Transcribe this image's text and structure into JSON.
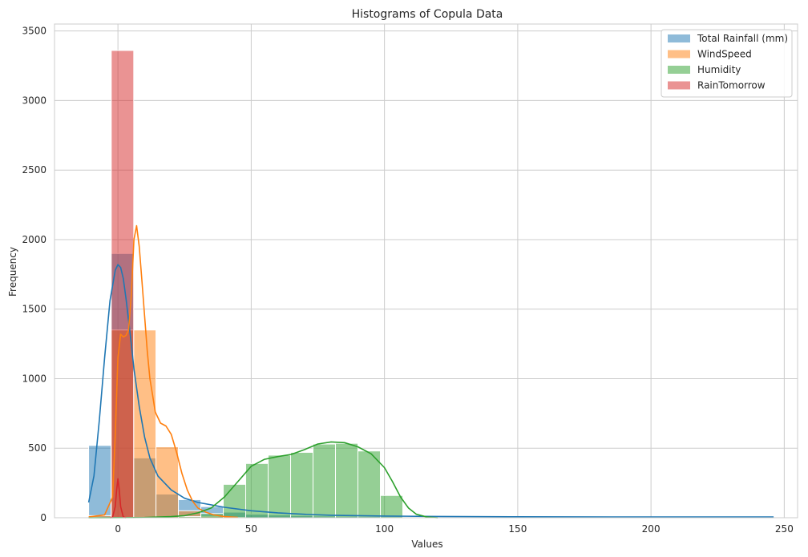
{
  "chart_data": {
    "type": "histogram",
    "title": "Histograms of Copula Data",
    "xlabel": "Values",
    "ylabel": "Frequency",
    "xlim": [
      -23.8,
      255
    ],
    "ylim": [
      0,
      3550
    ],
    "xticks": [
      0,
      50,
      100,
      150,
      200,
      250
    ],
    "yticks": [
      0,
      500,
      1000,
      1500,
      2000,
      2500,
      3000,
      3500
    ],
    "grid": true,
    "legend_position": "top-right",
    "bin_width": 8.42,
    "series": [
      {
        "name": "Total Rainfall (mm)",
        "color": "#1f77b4",
        "bin_start": -11.0,
        "counts": [
          520,
          1900,
          430,
          170,
          130,
          80,
          40,
          25,
          20,
          15,
          12,
          10,
          8,
          7,
          6,
          5,
          5,
          4,
          4,
          3,
          3,
          3,
          3,
          2,
          2,
          2,
          2,
          2,
          2,
          2
        ],
        "kde_x": [
          -11,
          -9,
          -7,
          -5,
          -3,
          -1,
          0,
          1,
          2,
          3,
          4,
          5,
          6,
          8,
          10,
          12,
          15,
          20,
          25,
          30,
          40,
          50,
          60,
          70,
          80,
          100,
          120,
          150,
          200,
          246
        ],
        "kde_y": [
          110,
          300,
          700,
          1150,
          1560,
          1780,
          1820,
          1800,
          1720,
          1580,
          1420,
          1250,
          1070,
          800,
          580,
          430,
          300,
          200,
          140,
          110,
          75,
          50,
          35,
          25,
          18,
          12,
          9,
          7,
          5,
          5
        ]
      },
      {
        "name": "WindSpeed",
        "color": "#ff7f0e",
        "bin_start": -11.0,
        "counts": [
          15,
          1350,
          1350,
          510,
          50,
          10,
          3
        ],
        "kde_x": [
          -11,
          -5,
          -2,
          -1,
          0,
          1,
          2,
          3,
          4,
          5,
          6,
          7,
          8,
          9,
          10,
          11,
          12,
          13,
          14,
          16,
          18,
          20,
          22,
          24,
          26,
          28,
          30,
          33,
          36,
          40,
          45
        ],
        "kde_y": [
          5,
          20,
          150,
          600,
          1150,
          1320,
          1300,
          1310,
          1350,
          1600,
          2000,
          2100,
          1950,
          1700,
          1450,
          1200,
          1000,
          880,
          760,
          680,
          660,
          600,
          470,
          320,
          200,
          120,
          70,
          40,
          20,
          8,
          3
        ]
      },
      {
        "name": "Humidity",
        "color": "#2ca02c",
        "bin_start": -11.0,
        "counts": [
          2,
          0,
          0,
          0,
          8,
          30,
          240,
          390,
          450,
          470,
          530,
          535,
          480,
          160
        ],
        "kde_x": [
          -11,
          10,
          20,
          25,
          30,
          35,
          40,
          45,
          50,
          55,
          60,
          65,
          70,
          75,
          80,
          85,
          90,
          95,
          100,
          103,
          106,
          109,
          112,
          116,
          120
        ],
        "kde_y": [
          0,
          2,
          8,
          15,
          35,
          70,
          150,
          260,
          370,
          420,
          440,
          455,
          490,
          530,
          545,
          540,
          510,
          460,
          360,
          260,
          150,
          70,
          25,
          5,
          0
        ]
      },
      {
        "name": "RainTomorrow",
        "color": "#d62728",
        "bin_start": -2.5,
        "counts": [
          3360
        ],
        "kde_x": [
          -3,
          -2,
          -1,
          -0.5,
          0,
          0.5,
          1,
          2,
          3
        ],
        "kde_y": [
          0,
          5,
          80,
          200,
          280,
          200,
          80,
          5,
          0
        ]
      }
    ]
  }
}
